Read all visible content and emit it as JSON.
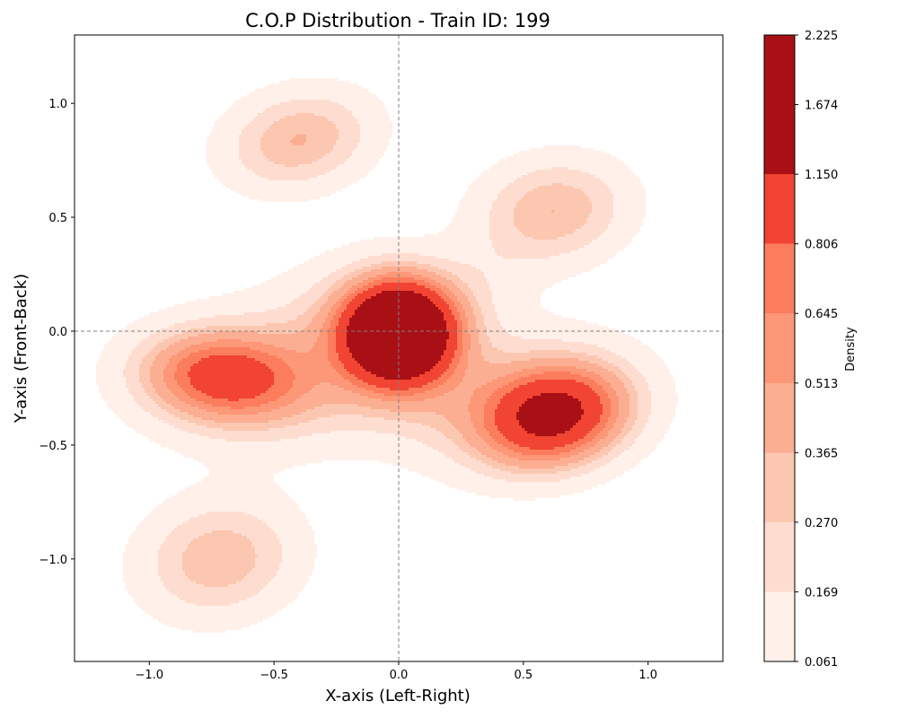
{
  "chart_data": {
    "type": "filled-contour",
    "title": "C.O.P Distribution - Train ID: 199",
    "xlabel": "X-axis (Left-Right)",
    "ylabel": "Y-axis (Front-Back)",
    "xlim": [
      -1.3,
      1.3
    ],
    "ylim": [
      -1.45,
      1.3
    ],
    "xticks": [
      -1.0,
      -0.5,
      0.0,
      0.5,
      1.0
    ],
    "xtick_labels": [
      "−1.0",
      "−0.5",
      "0.0",
      "0.5",
      "1.0"
    ],
    "yticks": [
      1.0,
      0.5,
      0.0,
      -0.5,
      -1.0
    ],
    "ytick_labels": [
      "1.0",
      "0.5",
      "0.0",
      "−0.5",
      "−1.0"
    ],
    "reference_lines": {
      "x": 0.0,
      "y": 0.0,
      "style": "dashed",
      "color": "#808080"
    },
    "grid": false,
    "colormap": "Reds",
    "colorbar": {
      "label": "Density",
      "levels": [
        0.061,
        0.169,
        0.27,
        0.365,
        0.513,
        0.645,
        0.806,
        1.15,
        1.674,
        2.225
      ],
      "level_labels": [
        "0.061",
        "0.169",
        "0.270",
        "0.365",
        "0.513",
        "0.645",
        "0.806",
        "1.150",
        "1.674",
        "2.225"
      ],
      "colors": [
        "#fff0e9",
        "#feddd0",
        "#fcc7b1",
        "#fcae92",
        "#fc9777",
        "#fb7d5d",
        "#f14432",
        "#a91016",
        "#a91016"
      ]
    },
    "density_clusters": [
      {
        "x": 0.0,
        "y": -0.01,
        "peak_level": 2.225
      },
      {
        "x": -0.7,
        "y": -0.2,
        "peak_level": 0.806
      },
      {
        "x": 0.62,
        "y": -0.37,
        "peak_level": 1.15
      },
      {
        "x": -0.4,
        "y": 0.84,
        "peak_level": 0.27
      },
      {
        "x": 0.62,
        "y": 0.53,
        "peak_level": 0.27
      },
      {
        "x": -0.72,
        "y": -1.0,
        "peak_level": 0.27
      }
    ]
  }
}
